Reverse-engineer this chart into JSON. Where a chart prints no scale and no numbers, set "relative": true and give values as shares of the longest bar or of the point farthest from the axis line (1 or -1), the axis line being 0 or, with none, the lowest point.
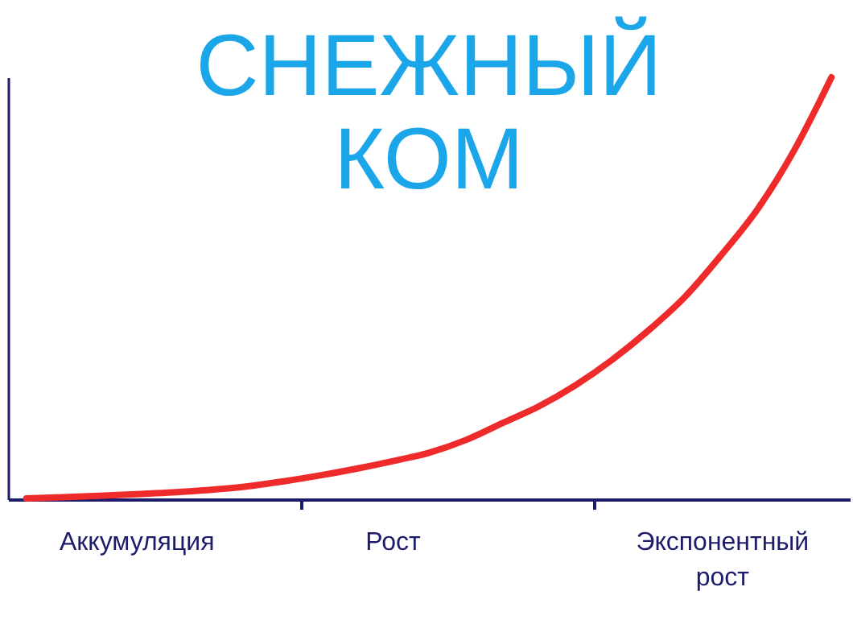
{
  "chart_data": {
    "type": "line",
    "title": "СНЕЖНЫЙ КОМ",
    "relative": true,
    "categories": [
      null,
      null,
      null,
      "Аккумуляция",
      null,
      null,
      null,
      null,
      null,
      null,
      "Рост",
      null,
      null,
      null,
      null,
      null,
      null,
      null,
      null,
      "Экспонентный рост",
      null,
      null,
      null
    ],
    "series": [
      {
        "color": "#ee2a2a",
        "values": [
          0.002,
          0.005,
          0.008,
          0.012,
          0.016,
          0.022,
          0.03,
          0.042,
          0.056,
          0.072,
          0.09,
          0.11,
          0.14,
          0.18,
          0.22,
          0.27,
          0.33,
          0.4,
          0.48,
          0.58,
          0.69,
          0.83,
          1
        ]
      }
    ],
    "grid": false,
    "marker": "none",
    "line_style": "solid"
  }
}
